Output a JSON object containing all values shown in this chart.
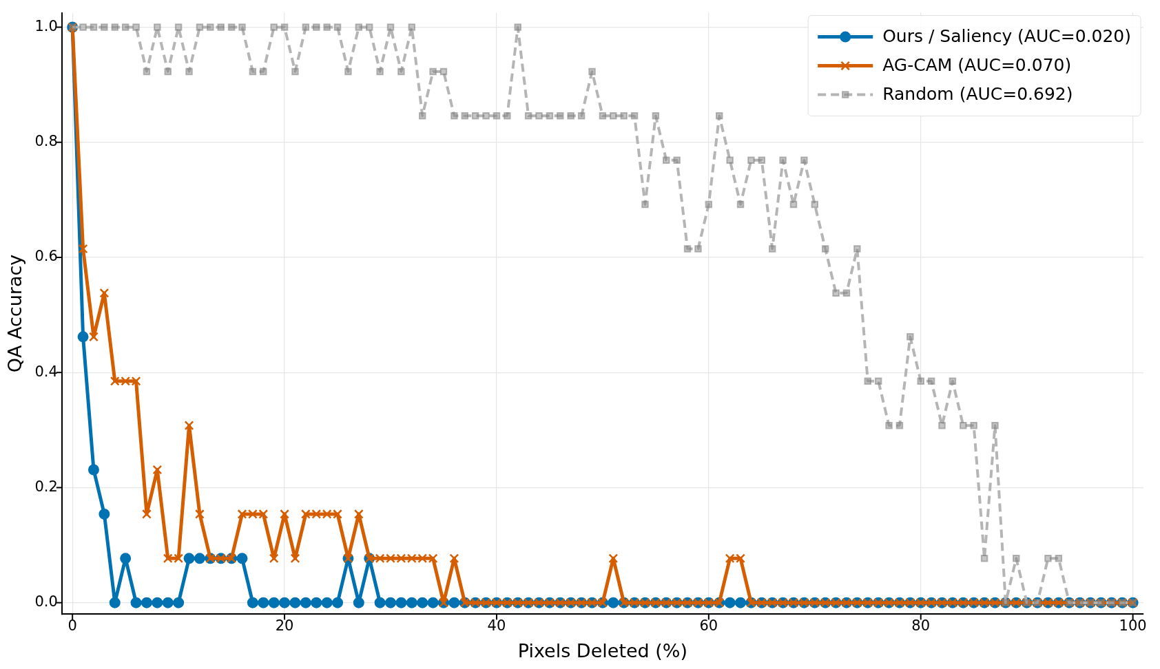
{
  "chart_data": {
    "type": "line",
    "xlabel": "Pixels Deleted (%)",
    "ylabel": "QA Accuracy",
    "x": [
      0,
      1,
      2,
      3,
      4,
      5,
      6,
      7,
      8,
      9,
      10,
      11,
      12,
      13,
      14,
      15,
      16,
      17,
      18,
      19,
      20,
      21,
      22,
      23,
      24,
      25,
      26,
      27,
      28,
      29,
      30,
      31,
      32,
      33,
      34,
      35,
      36,
      37,
      38,
      39,
      40,
      41,
      42,
      43,
      44,
      45,
      46,
      47,
      48,
      49,
      50,
      51,
      52,
      53,
      54,
      55,
      56,
      57,
      58,
      59,
      60,
      61,
      62,
      63,
      64,
      65,
      66,
      67,
      68,
      69,
      70,
      71,
      72,
      73,
      74,
      75,
      76,
      77,
      78,
      79,
      80,
      81,
      82,
      83,
      84,
      85,
      86,
      87,
      88,
      89,
      90,
      91,
      92,
      93,
      94,
      95,
      96,
      97,
      98,
      99,
      100
    ],
    "xlim": [
      -1,
      101
    ],
    "xticks": [
      0,
      20,
      40,
      60,
      80,
      100
    ],
    "ylim": [
      -0.02,
      1.025
    ],
    "yticks": [
      {
        "value": 0,
        "label": "0.0"
      },
      {
        "value": 0.2,
        "label": "0.2"
      },
      {
        "value": 0.4,
        "label": "0.4"
      },
      {
        "value": 0.6,
        "label": "0.6"
      },
      {
        "value": 0.8,
        "label": "0.8"
      },
      {
        "value": 1,
        "label": "1.0"
      }
    ],
    "grid": true,
    "legend": "top right",
    "series": [
      {
        "name": "Ours / Saliency (AUC=0.020)",
        "color": "#0072b2",
        "marker": "circle",
        "line_style": "solid",
        "values": [
          1,
          0.462,
          0.231,
          0.154,
          0,
          0.077,
          0,
          0,
          0,
          0,
          0,
          0.077,
          0.077,
          0.077,
          0.077,
          0.077,
          0.077,
          0,
          0,
          0,
          0,
          0,
          0,
          0,
          0,
          0,
          0.077,
          0,
          0.077,
          0,
          0,
          0,
          0,
          0,
          0,
          0,
          0,
          0,
          0,
          0,
          0,
          0,
          0,
          0,
          0,
          0,
          0,
          0,
          0,
          0,
          0,
          0,
          0,
          0,
          0,
          0,
          0,
          0,
          0,
          0,
          0,
          0,
          0,
          0,
          0,
          0,
          0,
          0,
          0,
          0,
          0,
          0,
          0,
          0,
          0,
          0,
          0,
          0,
          0,
          0,
          0,
          0,
          0,
          0,
          0,
          0,
          0,
          0,
          0,
          0,
          0,
          0,
          0,
          0,
          0,
          0,
          0,
          0,
          0,
          0,
          0
        ]
      },
      {
        "name": "AG-CAM (AUC=0.070)",
        "color": "#d55e00",
        "marker": "cross",
        "line_style": "solid",
        "values": [
          1,
          0.615,
          0.462,
          0.538,
          0.385,
          0.385,
          0.385,
          0.154,
          0.231,
          0.077,
          0.077,
          0.308,
          0.154,
          0.077,
          0.077,
          0.077,
          0.154,
          0.154,
          0.154,
          0.077,
          0.154,
          0.077,
          0.154,
          0.154,
          0.154,
          0.154,
          0.077,
          0.154,
          0.077,
          0.077,
          0.077,
          0.077,
          0.077,
          0.077,
          0.077,
          0,
          0.077,
          0,
          0,
          0,
          0,
          0,
          0,
          0,
          0,
          0,
          0,
          0,
          0,
          0,
          0,
          0.077,
          0,
          0,
          0,
          0,
          0,
          0,
          0,
          0,
          0,
          0,
          0.077,
          0.077,
          0,
          0,
          0,
          0,
          0,
          0,
          0,
          0,
          0,
          0,
          0,
          0,
          0,
          0,
          0,
          0,
          0,
          0,
          0,
          0,
          0,
          0,
          0,
          0,
          0,
          0,
          0,
          0,
          0,
          0,
          0,
          0,
          0,
          0,
          0,
          0,
          0
        ]
      },
      {
        "name": "Random (AUC=0.692)",
        "color": "#b5b5b5",
        "marker": "square",
        "line_style": "dashed",
        "values": [
          1,
          1,
          1,
          1,
          1,
          1,
          1,
          0.923,
          1,
          0.923,
          1,
          0.923,
          1,
          1,
          1,
          1,
          1,
          0.923,
          0.923,
          1,
          1,
          0.923,
          1,
          1,
          1,
          1,
          0.923,
          1,
          1,
          0.923,
          1,
          0.923,
          1,
          0.846,
          0.923,
          0.923,
          0.846,
          0.846,
          0.846,
          0.846,
          0.846,
          0.846,
          1,
          0.846,
          0.846,
          0.846,
          0.846,
          0.846,
          0.846,
          0.923,
          0.846,
          0.846,
          0.846,
          0.846,
          0.692,
          0.846,
          0.769,
          0.769,
          0.615,
          0.615,
          0.692,
          0.846,
          0.769,
          0.692,
          0.769,
          0.769,
          0.615,
          0.769,
          0.692,
          0.769,
          0.692,
          0.615,
          0.538,
          0.538,
          0.615,
          0.385,
          0.385,
          0.308,
          0.308,
          0.462,
          0.385,
          0.385,
          0.308,
          0.385,
          0.308,
          0.308,
          0.077,
          0.308,
          0,
          0.077,
          0,
          0,
          0.077,
          0.077,
          0,
          0,
          0,
          0,
          0,
          0,
          0
        ]
      }
    ]
  }
}
